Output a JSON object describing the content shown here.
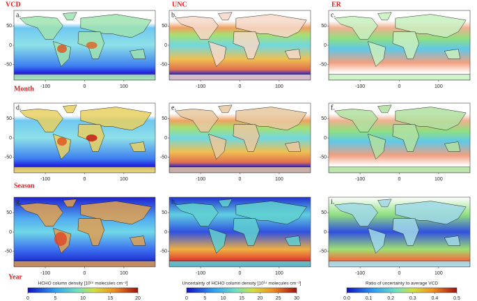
{
  "columns": [
    "VCD",
    "UNC",
    "ER"
  ],
  "rows": [
    "Month",
    "Season",
    "Year"
  ],
  "panels": [
    "a.",
    "b.",
    "c.",
    "d.",
    "e.",
    "f.",
    "g.",
    "h.",
    "i."
  ],
  "map_axes": {
    "lat_ticks": [
      50,
      0,
      -50
    ],
    "lon_ticks": [
      -100,
      0,
      100
    ]
  },
  "colorbars": [
    {
      "label": "HCHO column density [10¹⁵ molecules cm⁻²]",
      "range": [
        0,
        20
      ],
      "ticks": [
        0,
        5,
        10,
        15,
        20
      ]
    },
    {
      "label": "Uncertainty of HCHO column density [10¹⁴ molecules cm⁻²]",
      "range": [
        0,
        30
      ],
      "ticks": [
        0,
        5,
        10,
        15,
        20,
        25,
        30
      ]
    },
    {
      "label": "Ratio of uncertainty to average VCD",
      "range": [
        0,
        0.5
      ],
      "ticks": [
        {
          "value": 0,
          "label": "0.0"
        },
        0.1,
        0.2,
        0.3,
        0.4,
        0.5
      ]
    }
  ]
}
